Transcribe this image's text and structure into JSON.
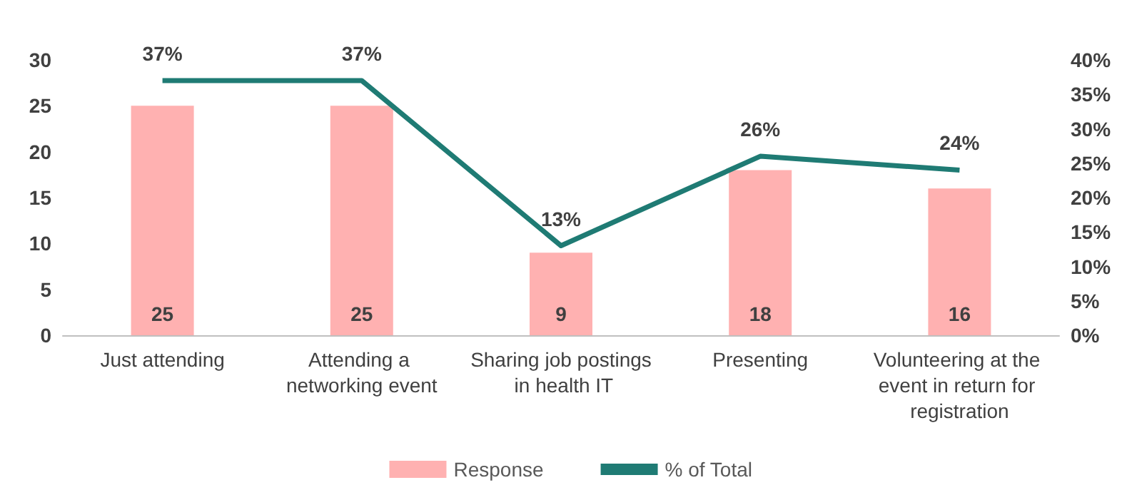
{
  "chart_data": {
    "type": "bar",
    "categories": [
      "Just attending",
      "Attending a networking event",
      "Sharing job postings in health IT",
      "Presenting",
      "Volunteering at the event in return for registration"
    ],
    "series": [
      {
        "name": "Response",
        "color": "#ffb1b1",
        "values": [
          25,
          25,
          9,
          18,
          16
        ],
        "value_labels": [
          "25",
          "25",
          "9",
          "18",
          "16"
        ]
      },
      {
        "name": "% of Total",
        "type": "line",
        "axis": "y2",
        "color": "#1f7b74",
        "values": [
          37,
          37,
          13,
          26,
          24
        ],
        "value_labels": [
          "37%",
          "37%",
          "13%",
          "26%",
          "24%"
        ]
      }
    ],
    "ylim": [
      0,
      30
    ],
    "yticks": [
      0,
      5,
      10,
      15,
      20,
      25,
      30
    ],
    "y2lim": [
      0,
      40
    ],
    "y2ticks": [
      {
        "value": 0,
        "label": "0%"
      },
      {
        "value": 5,
        "label": "5%"
      },
      {
        "value": 10,
        "label": "10%"
      },
      {
        "value": 15,
        "label": "15%"
      },
      {
        "value": 20,
        "label": "20%"
      },
      {
        "value": 25,
        "label": "25%"
      },
      {
        "value": 30,
        "label": "30%"
      },
      {
        "value": 35,
        "label": "35%"
      },
      {
        "value": 40,
        "label": "40%"
      }
    ],
    "grid": false,
    "legend": "bottom",
    "marker": "none"
  }
}
